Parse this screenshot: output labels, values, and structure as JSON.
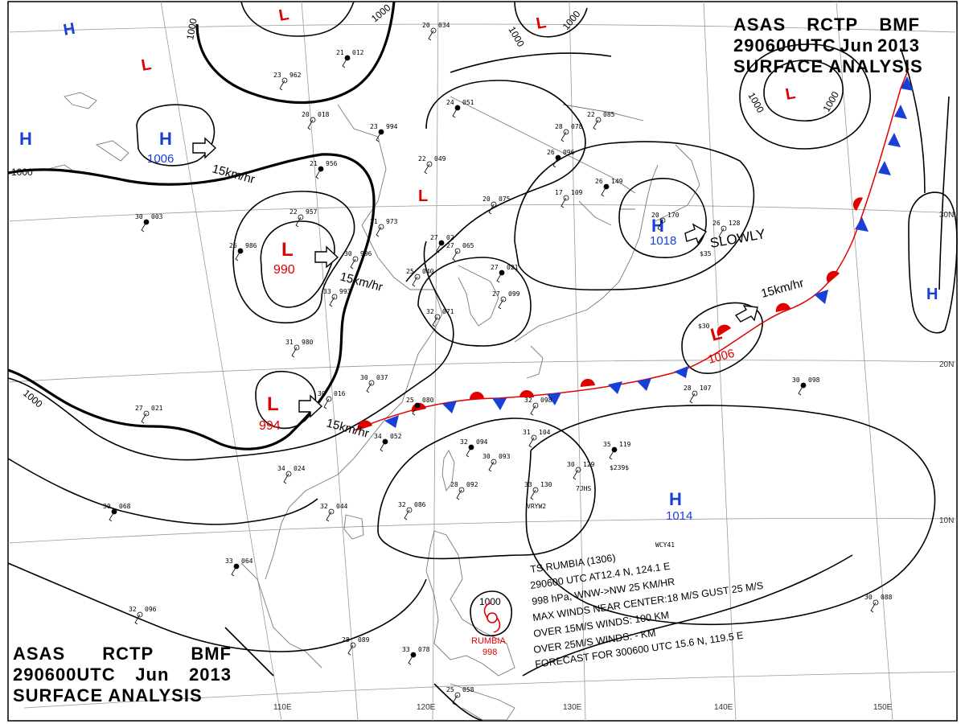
{
  "header": {
    "product": [
      "ASAS",
      "RCTP",
      "BMF"
    ],
    "time": [
      "290600UTC",
      "Jun",
      "2013"
    ],
    "title": "SURFACE ANALYSIS"
  },
  "colors": {
    "background": "#ffffff",
    "isobar": "#000000",
    "high": "#1a3fd6",
    "low": "#e00000",
    "front_warm": "#e00000",
    "front_cold": "#1a3fd6",
    "grid": "#9a9a9a"
  },
  "pressure_systems": [
    {
      "id": "high-nw",
      "type": "H",
      "value": ""
    },
    {
      "id": "high-mongolia",
      "type": "H",
      "value": "1006"
    },
    {
      "id": "low-north-center",
      "type": "L",
      "value": ""
    },
    {
      "id": "low-north-top",
      "type": "L",
      "value": ""
    },
    {
      "id": "low-north-right",
      "type": "L",
      "value": ""
    },
    {
      "id": "low-northeast",
      "type": "L",
      "value": ""
    },
    {
      "id": "low-china-north",
      "type": "L",
      "value": "990"
    },
    {
      "id": "low-china-south",
      "type": "L",
      "value": "994"
    },
    {
      "id": "low-yellow-sea",
      "type": "L",
      "value": ""
    },
    {
      "id": "high-japan",
      "type": "H",
      "value": "1018"
    },
    {
      "id": "low-pacific",
      "type": "L",
      "value": "1006"
    },
    {
      "id": "high-pacific-east",
      "type": "H",
      "value": ""
    },
    {
      "id": "high-pacific-south",
      "type": "H",
      "value": "1014"
    }
  ],
  "isobar_labels": [
    "1000",
    "1000",
    "1000",
    "1000",
    "1000",
    "1000",
    "1000",
    "1000",
    "1000"
  ],
  "motion_labels": [
    {
      "id": "mongolia-high",
      "text": "15km/hr"
    },
    {
      "id": "china-low",
      "text": "15km/hr"
    },
    {
      "id": "front-low",
      "text": "15km/hr"
    },
    {
      "id": "pacific-low",
      "text": "15km/hr"
    },
    {
      "id": "japan-high",
      "text": "SLOWLY"
    }
  ],
  "typhoon": {
    "name_label": "RUMBIA",
    "pressure_label": "998",
    "isobar": "1000",
    "bulletin": [
      "TS  RUMBIA  (1306)",
      "290600  UTC   AT12.4 N, 124.1 E",
      "998 hPa, WNW->NW  25 KM/HR",
      "MAX WINDS NEAR CENTER:18 M/S GUST 25 M/S",
      "OVER 15M/S WINDS: 100 KM",
      "OVER 25M/S WINDS: - KM",
      "FORECAST FOR 300600 UTC 15.6 N, 119.5 E"
    ]
  },
  "grid_labels": {
    "longitudes": [
      "110E",
      "120E",
      "130E",
      "140E",
      "150E"
    ],
    "latitudes": [
      "30N",
      "20N",
      "10N"
    ]
  },
  "stations": [
    {
      "t": "21",
      "p": "012"
    },
    {
      "t": "23",
      "p": "962"
    },
    {
      "t": "20",
      "p": "018"
    },
    {
      "t": "23",
      "p": "994"
    },
    {
      "t": "22",
      "p": "049"
    },
    {
      "t": "20",
      "p": "075"
    },
    {
      "t": "24",
      "p": "051"
    },
    {
      "t": "20",
      "p": "034"
    },
    {
      "t": "28",
      "p": "078"
    },
    {
      "t": "26",
      "p": "096"
    },
    {
      "t": "22",
      "p": "085"
    },
    {
      "t": "17",
      "p": "109"
    },
    {
      "t": "26",
      "p": "149"
    },
    {
      "t": "20",
      "p": "170"
    },
    {
      "t": "26",
      "p": "128"
    },
    {
      "t": "21",
      "p": "956"
    },
    {
      "t": "22",
      "p": "957"
    },
    {
      "t": "21",
      "p": "973"
    },
    {
      "t": "26",
      "p": "986"
    },
    {
      "t": "31",
      "p": "980"
    },
    {
      "t": "30",
      "p": "037"
    },
    {
      "t": "25",
      "p": "080"
    },
    {
      "t": "32",
      "p": "098"
    },
    {
      "t": "31",
      "p": "104"
    },
    {
      "t": "35",
      "p": "119"
    },
    {
      "t": "30",
      "p": "129"
    },
    {
      "t": "33",
      "p": "130"
    },
    {
      "t": "34",
      "p": "052"
    },
    {
      "t": "34",
      "p": "024"
    },
    {
      "t": "32",
      "p": "086"
    },
    {
      "t": "32",
      "p": "094"
    },
    {
      "t": "30",
      "p": "093"
    },
    {
      "t": "28",
      "p": "092"
    },
    {
      "t": "33",
      "p": "064"
    },
    {
      "t": "32",
      "p": "096"
    },
    {
      "t": "28",
      "p": "089"
    },
    {
      "t": "33",
      "p": "078"
    },
    {
      "t": "25",
      "p": "058"
    },
    {
      "t": "28",
      "p": "107"
    },
    {
      "t": "30",
      "p": "098"
    },
    {
      "t": "30",
      "p": "088"
    },
    {
      "t": "27",
      "p": "021"
    },
    {
      "t": "30",
      "p": "068"
    },
    {
      "t": "30",
      "p": "016"
    },
    {
      "t": "32",
      "p": "044"
    },
    {
      "t": "27",
      "p": "02"
    },
    {
      "t": "27",
      "p": "065"
    },
    {
      "t": "25",
      "p": "040"
    },
    {
      "t": "27",
      "p": "021"
    },
    {
      "t": "27",
      "p": "099"
    },
    {
      "t": "30",
      "p": "996"
    },
    {
      "t": "30",
      "p": "003"
    },
    {
      "t": "33",
      "p": "993"
    },
    {
      "t": "32",
      "p": "071"
    }
  ],
  "ship_ids": [
    "7JHS",
    "WCY41",
    "VRYW2",
    "$239$",
    "$30",
    "$35"
  ]
}
